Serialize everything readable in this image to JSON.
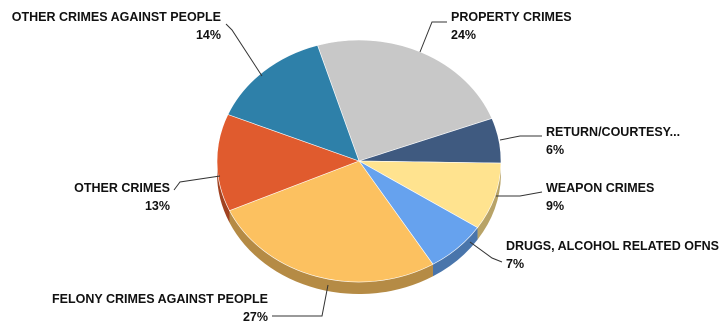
{
  "chart_data": {
    "type": "pie",
    "title": "",
    "slices": [
      {
        "label": "PROPERTY CRIMES",
        "value": 24,
        "display": "24%",
        "color": "#c8c8c8"
      },
      {
        "label": "RETURN/COURTESY...",
        "value": 6,
        "display": "6%",
        "color": "#3f5a80"
      },
      {
        "label": "WEAPON CRIMES",
        "value": 9,
        "display": "9%",
        "color": "#ffe38f"
      },
      {
        "label": "DRUGS, ALCOHOL RELATED OFNS",
        "value": 7,
        "display": "7%",
        "color": "#66a2ee"
      },
      {
        "label": "FELONY CRIMES AGAINST PEOPLE",
        "value": 27,
        "display": "27%",
        "color": "#fcc160"
      },
      {
        "label": "OTHER CRIMES",
        "value": 13,
        "display": "13%",
        "color": "#e05b2e"
      },
      {
        "label": "OTHER CRIMES AGAINST PEOPLE",
        "value": 14,
        "display": "14%",
        "color": "#2e80a9"
      }
    ]
  }
}
